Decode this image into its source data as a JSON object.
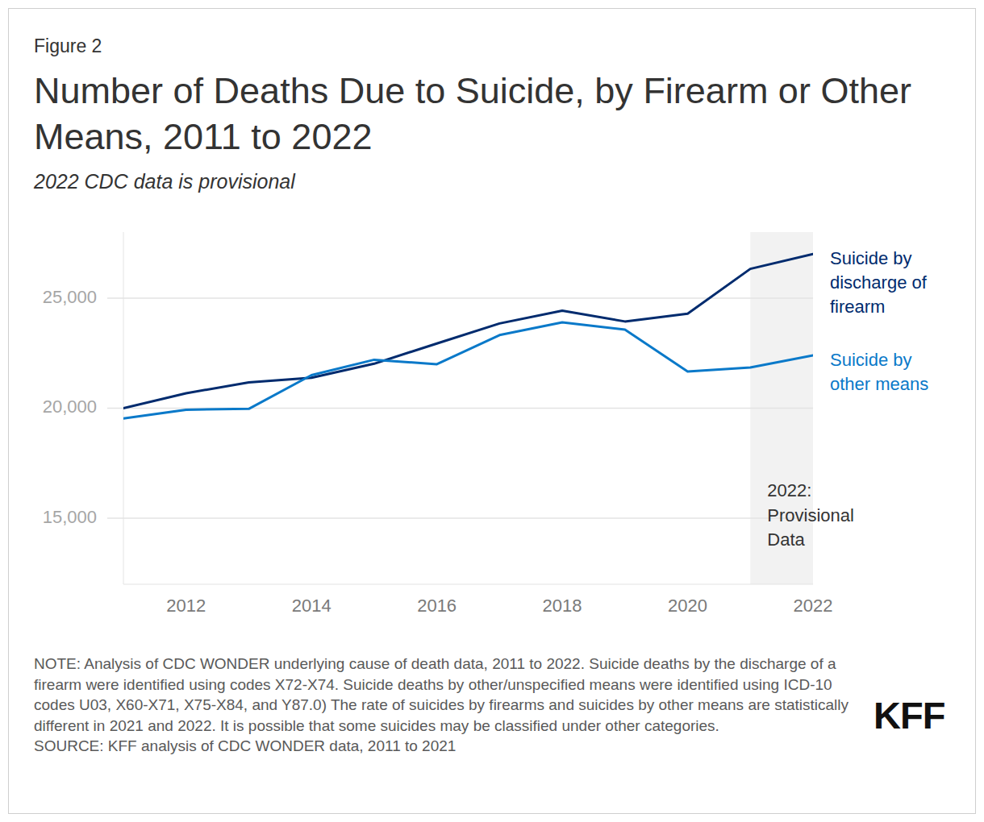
{
  "chart_data": {
    "type": "line",
    "figure_label": "Figure 2",
    "title": "Number of Deaths Due to Suicide, by Firearm or Other Means, 2011 to 2022",
    "subtitle": "2022 CDC data is provisional",
    "x": [
      2011,
      2012,
      2013,
      2014,
      2015,
      2016,
      2017,
      2018,
      2019,
      2020,
      2021,
      2022
    ],
    "series": [
      {
        "name": "Suicide by discharge of firearm",
        "color": "#002b6e",
        "values": [
          20000,
          20680,
          21170,
          21380,
          22020,
          22940,
          23850,
          24430,
          23940,
          24290,
          26330,
          27000
        ]
      },
      {
        "name": "Suicide by other means",
        "color": "#0a79c9",
        "values": [
          19530,
          19930,
          19970,
          21500,
          22200,
          22000,
          23320,
          23900,
          23570,
          21670,
          21850,
          22400
        ]
      }
    ],
    "xlim": [
      2011,
      2022
    ],
    "xticks": [
      2012,
      2014,
      2016,
      2018,
      2020,
      2022
    ],
    "ylim": [
      12000,
      28000
    ],
    "yticks": [
      {
        "value": 15000,
        "label": "15,000"
      },
      {
        "value": 20000,
        "label": "20,000"
      },
      {
        "value": 25000,
        "label": "25,000"
      }
    ],
    "grid": true,
    "annotations": [
      {
        "text": "2022: Provisional Data",
        "x": [
          2021,
          2022
        ]
      }
    ],
    "note": "NOTE: Analysis of CDC WONDER underlying cause of death data, 2011 to 2022. Suicide deaths by the discharge of a firearm were identified using codes X72-X74. Suicide deaths by other/unspecified means were identified using ICD-10 codes U03, X60-X71, X75-X84, and Y87.0) The rate of suicides by firearms and suicides by other means are statistically different in 2021 and 2022. It is possible that some suicides may be classified under other categories.",
    "source": "SOURCE: KFF analysis of CDC WONDER data, 2011 to 2021",
    "logo": "KFF"
  }
}
